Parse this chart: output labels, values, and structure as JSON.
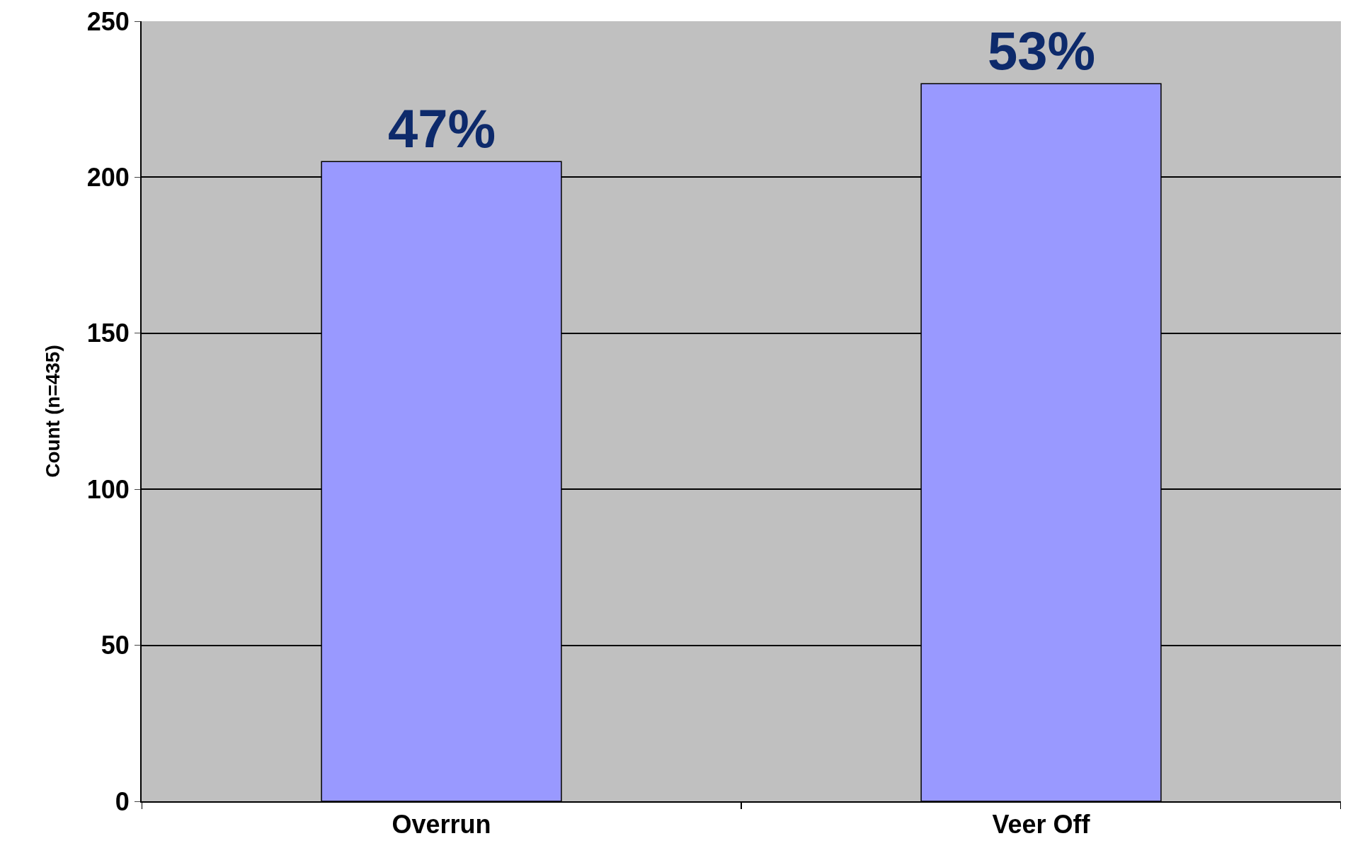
{
  "chart_data": {
    "type": "bar",
    "ylabel": "Count (n=435)",
    "categories": [
      "Overrun",
      "Veer Off"
    ],
    "values": [
      205,
      230
    ],
    "annotations": [
      {
        "text": "47%",
        "x": "Overrun",
        "y": 205
      },
      {
        "text": "53%",
        "x": "Veer Off",
        "y": 230
      }
    ],
    "color": "#9999ff",
    "ylim": [
      0,
      250
    ],
    "yticks": [
      0,
      50,
      100,
      150,
      200,
      250
    ],
    "grid": "y"
  }
}
